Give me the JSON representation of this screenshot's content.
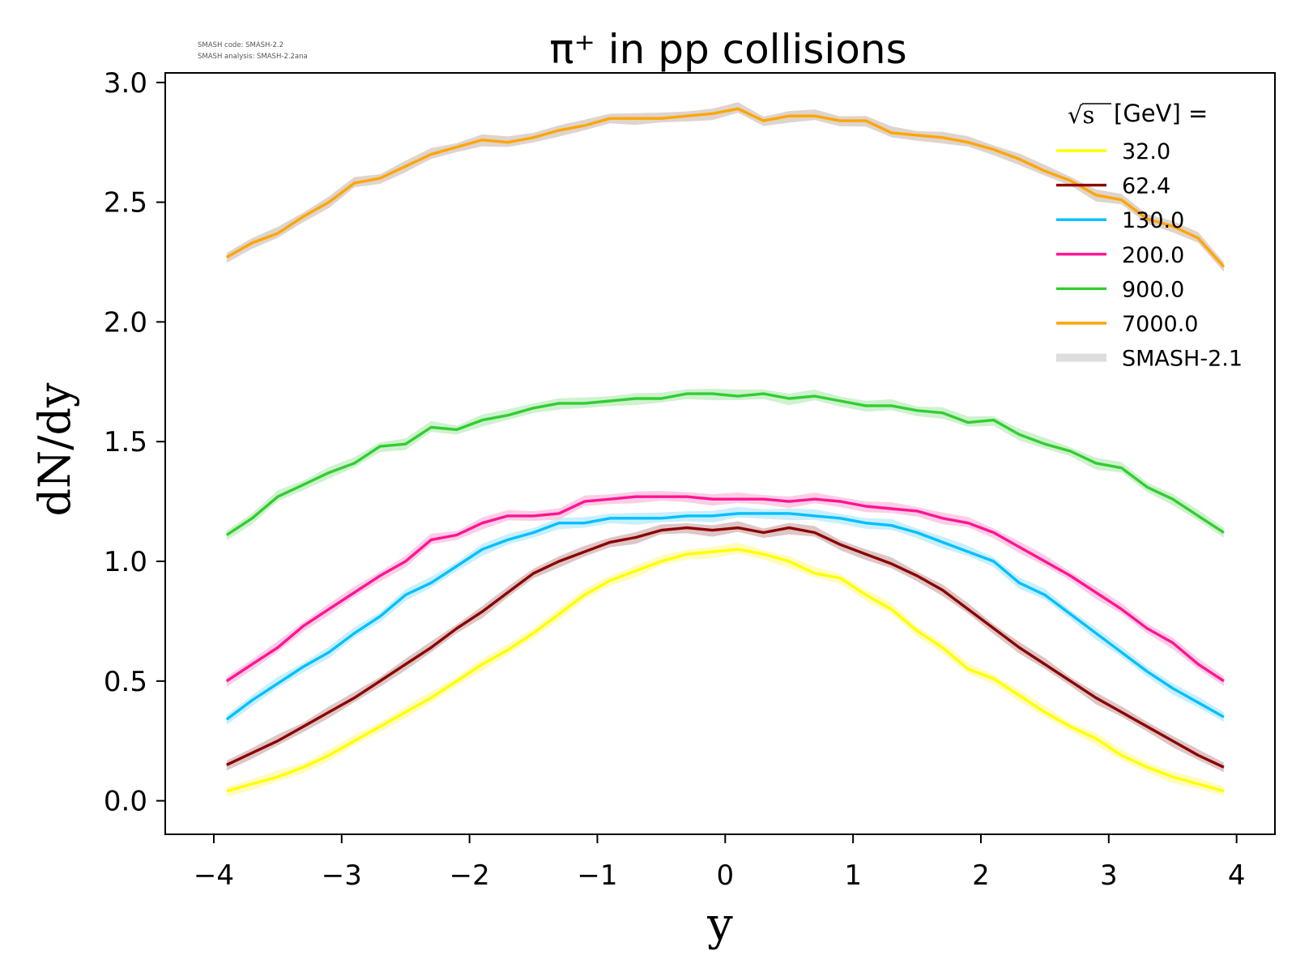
{
  "watermark": {
    "line1": "SMASH code:      SMASH-2.2",
    "line2": "SMASH analysis: SMASH-2.2ana"
  },
  "chart_data": {
    "type": "line",
    "title": "π⁺ in pp collisions",
    "xlabel": "y",
    "ylabel": "dN/dy",
    "xlim": [
      -4.38,
      4.3
    ],
    "ylim": [
      -0.14,
      3.04
    ],
    "xticks": [
      -4,
      -3,
      -2,
      -1,
      0,
      1,
      2,
      3,
      4
    ],
    "yticks": [
      0.0,
      0.5,
      1.0,
      1.5,
      2.0,
      2.5,
      3.0
    ],
    "xtick_labels": [
      "−4",
      "−3",
      "−2",
      "−1",
      "0",
      "1",
      "2",
      "3",
      "4"
    ],
    "ytick_labels": [
      "0.0",
      "0.5",
      "1.0",
      "1.5",
      "2.0",
      "2.5",
      "3.0"
    ],
    "grid": false,
    "legend": {
      "placement": "top-right",
      "title_sqrt": "√s",
      "title_rest": " [GeV] =",
      "reference_label": "SMASH-2.1",
      "reference_color": "#dddddd"
    },
    "x": [
      -3.9,
      -3.7,
      -3.5,
      -3.3,
      -3.1,
      -2.9,
      -2.7,
      -2.5,
      -2.3,
      -2.1,
      -1.9,
      -1.7,
      -1.5,
      -1.3,
      -1.1,
      -0.9,
      -0.7,
      -0.5,
      -0.3,
      -0.1,
      0.1,
      0.3,
      0.5,
      0.7,
      0.9,
      1.1,
      1.3,
      1.5,
      1.7,
      1.9,
      2.1,
      2.3,
      2.5,
      2.7,
      2.9,
      3.1,
      3.3,
      3.5,
      3.7,
      3.9
    ],
    "series": [
      {
        "name": "32.0",
        "color": "#ffff00",
        "band_color": "#fffbb0",
        "values": [
          0.04,
          0.07,
          0.1,
          0.14,
          0.19,
          0.25,
          0.31,
          0.37,
          0.43,
          0.5,
          0.57,
          0.63,
          0.7,
          0.78,
          0.86,
          0.92,
          0.96,
          1.0,
          1.03,
          1.04,
          1.05,
          1.03,
          1.0,
          0.95,
          0.93,
          0.86,
          0.8,
          0.71,
          0.64,
          0.55,
          0.51,
          0.44,
          0.37,
          0.31,
          0.26,
          0.19,
          0.14,
          0.1,
          0.07,
          0.04
        ]
      },
      {
        "name": "62.4",
        "color": "#8b0000",
        "band_color": "#d8bcbc",
        "values": [
          0.15,
          0.2,
          0.25,
          0.31,
          0.37,
          0.43,
          0.5,
          0.57,
          0.64,
          0.72,
          0.79,
          0.87,
          0.95,
          1.0,
          1.04,
          1.08,
          1.1,
          1.13,
          1.14,
          1.13,
          1.14,
          1.12,
          1.14,
          1.12,
          1.07,
          1.03,
          0.99,
          0.94,
          0.88,
          0.8,
          0.72,
          0.64,
          0.57,
          0.5,
          0.43,
          0.37,
          0.31,
          0.25,
          0.19,
          0.14
        ]
      },
      {
        "name": "130.0",
        "color": "#00bfff",
        "band_color": "#c0ecfb",
        "values": [
          0.34,
          0.42,
          0.49,
          0.56,
          0.62,
          0.7,
          0.77,
          0.86,
          0.91,
          0.98,
          1.05,
          1.09,
          1.12,
          1.16,
          1.16,
          1.18,
          1.18,
          1.18,
          1.19,
          1.19,
          1.2,
          1.2,
          1.2,
          1.19,
          1.18,
          1.16,
          1.15,
          1.12,
          1.08,
          1.04,
          1.0,
          0.91,
          0.86,
          0.78,
          0.7,
          0.62,
          0.54,
          0.47,
          0.41,
          0.35
        ]
      },
      {
        "name": "200.0",
        "color": "#ff1493",
        "band_color": "#fbc6e2",
        "values": [
          0.5,
          0.57,
          0.64,
          0.73,
          0.8,
          0.87,
          0.94,
          1.0,
          1.09,
          1.11,
          1.16,
          1.19,
          1.19,
          1.2,
          1.25,
          1.26,
          1.27,
          1.27,
          1.27,
          1.26,
          1.26,
          1.26,
          1.25,
          1.26,
          1.25,
          1.23,
          1.22,
          1.21,
          1.18,
          1.16,
          1.12,
          1.06,
          1.0,
          0.94,
          0.87,
          0.8,
          0.72,
          0.66,
          0.57,
          0.5
        ]
      },
      {
        "name": "900.0",
        "color": "#32cd32",
        "band_color": "#c5f0c5",
        "values": [
          1.11,
          1.18,
          1.27,
          1.32,
          1.37,
          1.41,
          1.48,
          1.49,
          1.56,
          1.55,
          1.59,
          1.61,
          1.64,
          1.66,
          1.66,
          1.67,
          1.68,
          1.68,
          1.7,
          1.7,
          1.69,
          1.7,
          1.68,
          1.69,
          1.67,
          1.65,
          1.65,
          1.63,
          1.62,
          1.58,
          1.59,
          1.53,
          1.49,
          1.46,
          1.41,
          1.39,
          1.31,
          1.26,
          1.19,
          1.12
        ]
      },
      {
        "name": "7000.0",
        "color": "#ffa500",
        "band_color": "#d8ccc6",
        "values": [
          2.27,
          2.33,
          2.37,
          2.44,
          2.5,
          2.58,
          2.6,
          2.65,
          2.7,
          2.73,
          2.76,
          2.75,
          2.77,
          2.8,
          2.82,
          2.85,
          2.85,
          2.85,
          2.86,
          2.87,
          2.89,
          2.84,
          2.86,
          2.86,
          2.84,
          2.84,
          2.79,
          2.78,
          2.77,
          2.75,
          2.72,
          2.68,
          2.63,
          2.59,
          2.53,
          2.51,
          2.43,
          2.4,
          2.35,
          2.23
        ]
      }
    ]
  }
}
